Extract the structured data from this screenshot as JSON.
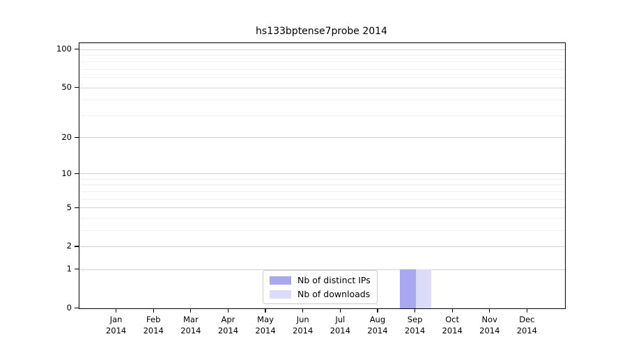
{
  "chart_data": {
    "type": "bar",
    "title": "hs133bptense7probe 2014",
    "categories": [
      "Jan 2014",
      "Feb 2014",
      "Mar 2014",
      "Apr 2014",
      "May 2014",
      "Jun 2014",
      "Jul 2014",
      "Aug 2014",
      "Sep 2014",
      "Oct 2014",
      "Nov 2014",
      "Dec 2014"
    ],
    "series": [
      {
        "name": "Nb of distinct IPs",
        "color": "#a8a8f0",
        "values": [
          0,
          0,
          0,
          0,
          0,
          0,
          0,
          0,
          1,
          0,
          0,
          0
        ]
      },
      {
        "name": "Nb of downloads",
        "color": "#dcdcf8",
        "values": [
          0,
          0,
          0,
          0,
          0,
          0,
          0,
          0,
          1,
          0,
          0,
          0
        ]
      }
    ],
    "xlabel": "",
    "ylabel": "",
    "yscale": "log1p",
    "ylim": [
      0,
      112
    ],
    "yticks": [
      0,
      1,
      2,
      5,
      10,
      20,
      50,
      100
    ],
    "yticks_minor": [
      3,
      4,
      6,
      7,
      8,
      9,
      30,
      40,
      60,
      70,
      80,
      90
    ],
    "grid": true,
    "legend_position": "bottom-center"
  },
  "colors": {
    "grid_major": "#d2d2d2",
    "grid_minor": "#efefef",
    "spine": "#000000",
    "legend_border": "#cccccc",
    "text": "#000000",
    "background": "#ffffff"
  }
}
